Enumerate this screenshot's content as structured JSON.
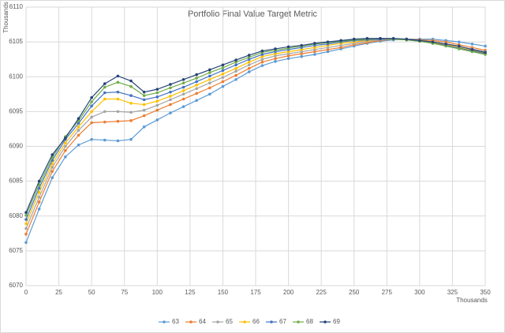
{
  "chart_data": {
    "type": "line",
    "title": "Portfolio Final Value Target Metric",
    "y_axis_label": "Thousands",
    "x_axis_label": "Thousands",
    "x": [
      0,
      10,
      20,
      30,
      40,
      50,
      60,
      70,
      80,
      90,
      100,
      110,
      120,
      130,
      140,
      150,
      160,
      170,
      180,
      190,
      200,
      210,
      220,
      230,
      240,
      250,
      260,
      270,
      280,
      290,
      300,
      310,
      320,
      330,
      340,
      350
    ],
    "xlim": [
      0,
      350
    ],
    "xticks": [
      0,
      25,
      50,
      75,
      100,
      125,
      150,
      175,
      200,
      225,
      250,
      275,
      300,
      325,
      350
    ],
    "ylim": [
      6070,
      6110
    ],
    "yticks": [
      6070,
      6075,
      6080,
      6085,
      6090,
      6095,
      6100,
      6105,
      6110
    ],
    "grid": true,
    "legend": "bottom",
    "series": [
      {
        "name": "63",
        "color": "#5b9bd5",
        "values": [
          6076.2,
          6081,
          6085.5,
          6088.5,
          6090.2,
          6091,
          6090.9,
          6090.8,
          6091,
          6092.8,
          6093.8,
          6094.8,
          6095.7,
          6096.6,
          6097.5,
          6098.6,
          6099.6,
          6100.7,
          6101.6,
          6102.2,
          6102.6,
          6102.9,
          6103.2,
          6103.6,
          6104,
          6104.4,
          6104.8,
          6105.1,
          6105.3,
          6105.4,
          6105.4,
          6105.4,
          6105.2,
          6105,
          6104.7,
          6104.4
        ]
      },
      {
        "name": "64",
        "color": "#ed7d31",
        "values": [
          6077.4,
          6082,
          6086.4,
          6089.4,
          6091.6,
          6093.4,
          6093.5,
          6093.6,
          6093.7,
          6094.4,
          6095.2,
          6096,
          6096.8,
          6097.6,
          6098.4,
          6099.3,
          6100.2,
          6101.2,
          6102.1,
          6102.6,
          6103,
          6103.3,
          6103.6,
          6103.9,
          6104.2,
          6104.6,
          6104.9,
          6105.2,
          6105.4,
          6105.4,
          6105.3,
          6105.2,
          6105,
          6104.6,
          6104.2,
          6103.8
        ]
      },
      {
        "name": "65",
        "color": "#a5a5a5",
        "values": [
          6078.2,
          6082.7,
          6087,
          6090,
          6092.3,
          6094.2,
          6095,
          6095,
          6094.9,
          6095.2,
          6095.9,
          6096.7,
          6097.5,
          6098.3,
          6099.1,
          6099.9,
          6100.8,
          6101.7,
          6102.5,
          6103,
          6103.3,
          6103.6,
          6103.9,
          6104.2,
          6104.5,
          6104.8,
          6105.1,
          6105.3,
          6105.4,
          6105.4,
          6105.2,
          6105,
          6104.7,
          6104.3,
          6104,
          6103.6
        ]
      },
      {
        "name": "66",
        "color": "#ffc000",
        "values": [
          6078.9,
          6083.4,
          6087.5,
          6090.5,
          6092.8,
          6095,
          6096.8,
          6096.8,
          6096.2,
          6096,
          6096.5,
          6097.2,
          6098,
          6098.8,
          6099.6,
          6100.4,
          6101.2,
          6102.1,
          6102.9,
          6103.3,
          6103.6,
          6103.9,
          6104.2,
          6104.5,
          6104.8,
          6105,
          6105.2,
          6105.4,
          6105.4,
          6105.3,
          6105.1,
          6104.9,
          6104.6,
          6104.2,
          6103.8,
          6103.4
        ]
      },
      {
        "name": "67",
        "color": "#4472c4",
        "values": [
          6079.5,
          6084,
          6088,
          6091,
          6093.3,
          6095.8,
          6097.7,
          6097.8,
          6097.3,
          6096.7,
          6097.1,
          6097.8,
          6098.5,
          6099.3,
          6100.1,
          6100.9,
          6101.7,
          6102.5,
          6103.2,
          6103.6,
          6103.9,
          6104.2,
          6104.5,
          6104.7,
          6105,
          6105.2,
          6105.3,
          6105.4,
          6105.4,
          6105.3,
          6105.1,
          6104.8,
          6104.5,
          6104.1,
          6103.7,
          6103.3
        ]
      },
      {
        "name": "68",
        "color": "#70ad47",
        "values": [
          6080.1,
          6084.5,
          6088.4,
          6091.4,
          6093.7,
          6096.4,
          6098.5,
          6099.2,
          6098.6,
          6097.3,
          6097.7,
          6098.4,
          6099.1,
          6099.8,
          6100.6,
          6101.3,
          6102.1,
          6102.8,
          6103.5,
          6103.8,
          6104.1,
          6104.4,
          6104.7,
          6104.9,
          6105.1,
          6105.3,
          6105.4,
          6105.5,
          6105.4,
          6105.3,
          6105.1,
          6104.8,
          6104.4,
          6104,
          6103.6,
          6103.2
        ]
      },
      {
        "name": "69",
        "color": "#264478",
        "values": [
          6080.5,
          6085,
          6088.8,
          6091.2,
          6094,
          6097,
          6099,
          6100.1,
          6099.4,
          6097.8,
          6098.2,
          6098.9,
          6099.6,
          6100.3,
          6101,
          6101.7,
          6102.4,
          6103.1,
          6103.7,
          6104,
          6104.3,
          6104.5,
          6104.8,
          6105,
          6105.2,
          6105.4,
          6105.5,
          6105.5,
          6105.5,
          6105.4,
          6105.2,
          6105,
          6104.7,
          6104.4,
          6103.9,
          6103.5
        ]
      }
    ]
  }
}
